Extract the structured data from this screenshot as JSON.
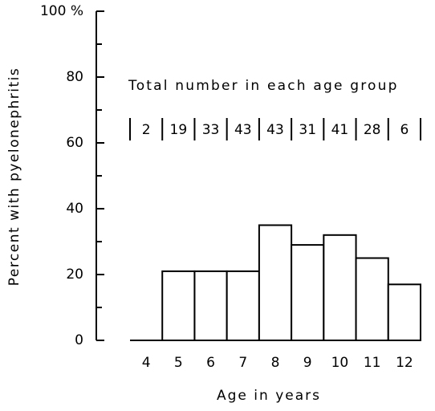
{
  "chart_data": {
    "type": "bar",
    "x_label": "Age in years",
    "y_label": "Percent with pyelonephritis",
    "categories": [
      "4",
      "5",
      "6",
      "7",
      "8",
      "9",
      "10",
      "11",
      "12"
    ],
    "values": [
      0,
      21,
      21,
      21,
      35,
      29,
      32,
      25,
      17
    ],
    "color": "#ffffff",
    "edge_color": "#000000",
    "ylim": [
      0,
      100
    ],
    "yticks": [
      0,
      20,
      40,
      60,
      80,
      {
        "value": 100,
        "label": "100 %"
      }
    ],
    "yticks_minor": [
      10,
      30,
      50,
      70,
      90
    ],
    "totals_title": "Total number in each age group",
    "totals": [
      2,
      19,
      33,
      43,
      43,
      31,
      41,
      28,
      6
    ]
  }
}
